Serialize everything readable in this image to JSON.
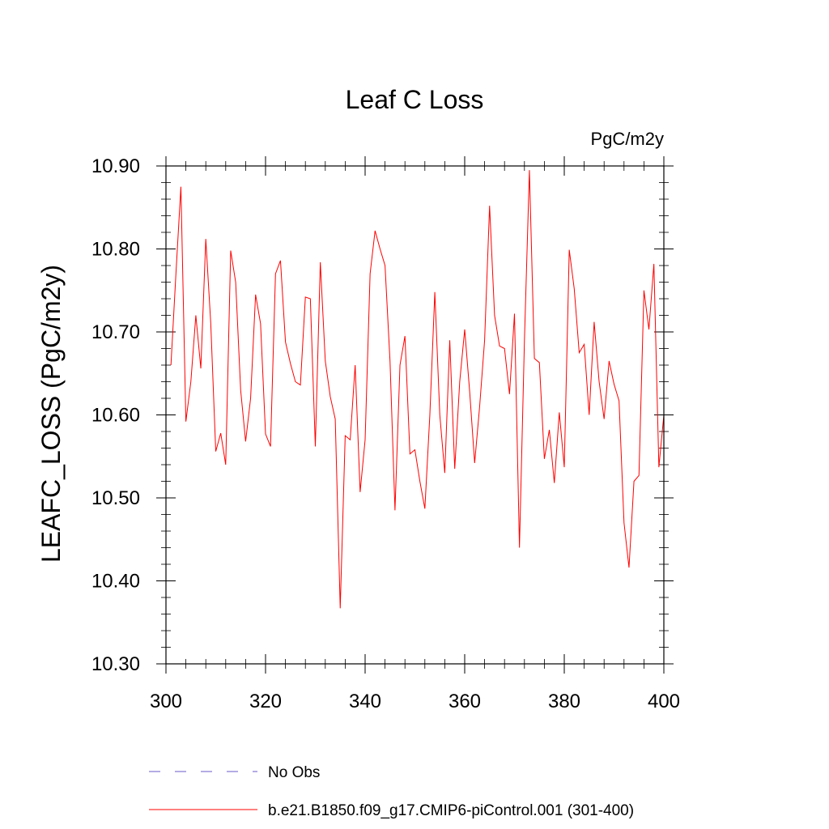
{
  "chart_data": {
    "type": "line",
    "title": "Leaf C Loss",
    "units_label": "PgC/m2y",
    "ylabel": "LEAFC_LOSS  (PgC/m2y)",
    "xlabel": "",
    "xlim": [
      300,
      400
    ],
    "ylim": [
      10.3,
      10.9
    ],
    "x_ticks": [
      300,
      320,
      340,
      360,
      380,
      400
    ],
    "x_tick_labels": [
      "300",
      "320",
      "340",
      "360",
      "380",
      "400"
    ],
    "y_ticks": [
      10.3,
      10.4,
      10.5,
      10.6,
      10.7,
      10.8,
      10.9
    ],
    "y_tick_labels": [
      "10.30",
      "10.40",
      "10.50",
      "10.60",
      "10.70",
      "10.80",
      "10.90"
    ],
    "grid": false,
    "legend_placement": "bottom-left, below plot",
    "series": [
      {
        "name": "No Obs",
        "color": "#6a5acd",
        "style": "dashed",
        "x": [],
        "values": []
      },
      {
        "name": "b.e21.B1850.f09_g17.CMIP6-piControl.001 (301-400)",
        "color": "#ff0000",
        "style": "solid",
        "x": [
          301,
          302,
          303,
          304,
          305,
          306,
          307,
          308,
          309,
          310,
          311,
          312,
          313,
          314,
          315,
          316,
          317,
          318,
          319,
          320,
          321,
          322,
          323,
          324,
          325,
          326,
          327,
          328,
          329,
          330,
          331,
          332,
          333,
          334,
          335,
          336,
          337,
          338,
          339,
          340,
          341,
          342,
          343,
          344,
          345,
          346,
          347,
          348,
          349,
          350,
          351,
          352,
          353,
          354,
          355,
          356,
          357,
          358,
          359,
          360,
          361,
          362,
          363,
          364,
          365,
          366,
          367,
          368,
          369,
          370,
          371,
          372,
          373,
          374,
          375,
          376,
          377,
          378,
          379,
          380,
          381,
          382,
          383,
          384,
          385,
          386,
          387,
          388,
          389,
          390,
          391,
          392,
          393,
          394,
          395,
          396,
          397,
          398,
          399,
          400
        ],
        "values": [
          10.66,
          10.77,
          10.875,
          10.592,
          10.64,
          10.72,
          10.656,
          10.812,
          10.71,
          10.556,
          10.578,
          10.54,
          10.798,
          10.76,
          10.63,
          10.568,
          10.62,
          10.745,
          10.71,
          10.577,
          10.562,
          10.77,
          10.786,
          10.688,
          10.662,
          10.64,
          10.636,
          10.742,
          10.74,
          10.562,
          10.784,
          10.665,
          10.622,
          10.595,
          10.367,
          10.575,
          10.57,
          10.66,
          10.507,
          10.57,
          10.77,
          10.822,
          10.8,
          10.78,
          10.665,
          10.485,
          10.66,
          10.695,
          10.553,
          10.558,
          10.52,
          10.487,
          10.6,
          10.748,
          10.6,
          10.53,
          10.69,
          10.535,
          10.64,
          10.703,
          10.628,
          10.542,
          10.61,
          10.69,
          10.852,
          10.72,
          10.683,
          10.68,
          10.625,
          10.722,
          10.44,
          10.69,
          10.895,
          10.668,
          10.663,
          10.547,
          10.582,
          10.518,
          10.603,
          10.537,
          10.799,
          10.752,
          10.675,
          10.685,
          10.6,
          10.712,
          10.64,
          10.595,
          10.665,
          10.637,
          10.617,
          10.47,
          10.416,
          10.52,
          10.527,
          10.75,
          10.703,
          10.782,
          10.537,
          10.6
        ]
      }
    ]
  }
}
